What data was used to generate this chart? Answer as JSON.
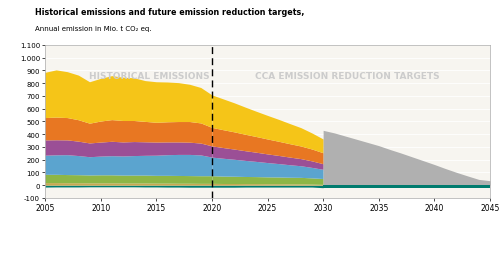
{
  "title": "Historical emissions and future emission reduction targets,",
  "subtitle": "Annual emission in Mio. t CO₂ eq.",
  "ylim": [
    -100,
    1100
  ],
  "yticks": [
    -100,
    0,
    100,
    200,
    300,
    400,
    500,
    600,
    700,
    800,
    900,
    1000,
    1100
  ],
  "ytick_labels": [
    "-100",
    "0",
    "100",
    "200",
    "300",
    "400",
    "500",
    "600",
    "700",
    "800",
    "900",
    "1.000",
    "1.100"
  ],
  "xlabel_years": [
    2005,
    2010,
    2015,
    2020,
    2025,
    2030,
    2035,
    2040,
    2045
  ],
  "dashed_line_x": 2020,
  "label_historical": "HISTORICAL EMISSIONS",
  "label_cca": "CCA EMISSION REDUCTION TARGETS",
  "colors": {
    "Energy": "#F5C518",
    "Industry": "#E87722",
    "Buildings": "#9B4F96",
    "Transport": "#5BA4CF",
    "Agriculture": "#8DB646",
    "Waste": "#C8A951",
    "AFOLU": "#007B6E",
    "Total": "#B0B0B0"
  },
  "bg_color": "#ffffff",
  "plot_bg_color": "#f7f5f0",
  "historical_years": [
    2005,
    2006,
    2007,
    2008,
    2009,
    2010,
    2011,
    2012,
    2013,
    2014,
    2015,
    2016,
    2017,
    2018,
    2019,
    2020
  ],
  "energy": [
    355,
    370,
    360,
    350,
    325,
    335,
    345,
    340,
    335,
    320,
    318,
    312,
    305,
    292,
    278,
    255
  ],
  "industry": [
    175,
    178,
    175,
    168,
    155,
    165,
    170,
    168,
    165,
    160,
    155,
    158,
    160,
    162,
    158,
    145
  ],
  "buildings": [
    120,
    118,
    116,
    113,
    108,
    110,
    113,
    110,
    110,
    106,
    103,
    100,
    98,
    96,
    93,
    88
  ],
  "transport": [
    150,
    153,
    156,
    150,
    143,
    147,
    150,
    150,
    153,
    155,
    158,
    162,
    165,
    166,
    163,
    146
  ],
  "agriculture": [
    65,
    65,
    64,
    63,
    62,
    63,
    63,
    62,
    62,
    62,
    61,
    61,
    61,
    60,
    60,
    60
  ],
  "waste": [
    20,
    20,
    19,
    19,
    18,
    18,
    18,
    17,
    17,
    17,
    16,
    16,
    15,
    15,
    14,
    14
  ],
  "afolu": [
    -15,
    -14,
    -14,
    -14,
    -13,
    -13,
    -13,
    -13,
    -13,
    -14,
    -14,
    -15,
    -15,
    -16,
    -16,
    -16
  ],
  "future_years_colored": [
    2020,
    2021,
    2022,
    2023,
    2024,
    2025,
    2026,
    2027,
    2028,
    2029,
    2030
  ],
  "f_energy": [
    255,
    242,
    228,
    213,
    198,
    185,
    172,
    158,
    144,
    126,
    108
  ],
  "f_industry": [
    145,
    140,
    135,
    129,
    123,
    117,
    111,
    105,
    99,
    93,
    86
  ],
  "f_buildings": [
    88,
    84,
    80,
    76,
    72,
    68,
    64,
    60,
    56,
    51,
    44
  ],
  "f_transport": [
    146,
    140,
    133,
    126,
    119,
    112,
    105,
    98,
    91,
    82,
    72
  ],
  "f_agriculture": [
    60,
    58,
    57,
    56,
    55,
    54,
    53,
    52,
    51,
    49,
    46
  ],
  "f_waste": [
    14,
    13,
    13,
    12,
    12,
    11,
    11,
    10,
    10,
    8,
    6
  ],
  "f_afolu": [
    -16,
    -16,
    -16,
    -15,
    -15,
    -15,
    -15,
    -15,
    -15,
    -15,
    -20
  ],
  "gray_years": [
    2030,
    2031,
    2032,
    2033,
    2034,
    2035,
    2036,
    2037,
    2038,
    2039,
    2040,
    2041,
    2042,
    2043,
    2044,
    2045
  ],
  "gray_total": [
    430,
    410,
    385,
    360,
    335,
    310,
    280,
    252,
    222,
    192,
    162,
    130,
    100,
    72,
    45,
    35
  ],
  "afolu_future_years": [
    2030,
    2031,
    2032,
    2033,
    2034,
    2035,
    2036,
    2037,
    2038,
    2039,
    2040,
    2041,
    2042,
    2043,
    2044,
    2045
  ],
  "afolu_future": [
    -20,
    -20,
    -20,
    -20,
    -20,
    -20,
    -20,
    -20,
    -20,
    -20,
    -20,
    -20,
    -20,
    -20,
    -20,
    -20
  ]
}
